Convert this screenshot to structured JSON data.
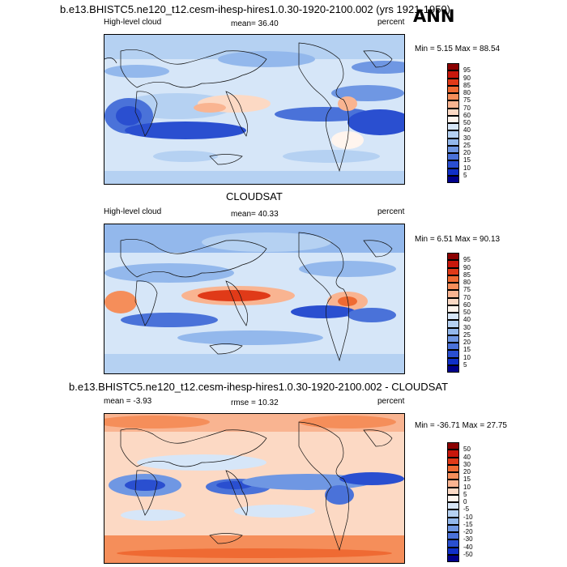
{
  "header": {
    "title": "b.e13.BHISTC5.ne120_t12.cesm-ihesp-hires1.0.30-1920-2100.002 (yrs 1921-1950)",
    "season": "ANN"
  },
  "panels": [
    {
      "id": "model",
      "title": "",
      "left_label": "High-level cloud",
      "center_label": "mean=  36.40",
      "right_label": "percent",
      "minmax": "Min =   5.15 Max =  88.54",
      "scale": "abs"
    },
    {
      "id": "obs",
      "title": "CLOUDSAT",
      "left_label": "High-level cloud",
      "center_label": "mean=  40.33",
      "right_label": "percent",
      "minmax": "Min =   6.51 Max =  90.13",
      "scale": "abs"
    },
    {
      "id": "diff",
      "title": "b.e13.BHISTC5.ne120_t12.cesm-ihesp-hires1.0.30-1920-2100.002 - CLOUDSAT",
      "left_label": "mean = -3.93",
      "center_label": "rmse =  10.32",
      "right_label": "percent",
      "minmax": "Min = -36.71 Max =  27.75",
      "scale": "diff"
    }
  ],
  "colorbars": {
    "abs": {
      "labels": [
        "95",
        "90",
        "85",
        "80",
        "75",
        "70",
        "60",
        "50",
        "40",
        "30",
        "25",
        "20",
        "15",
        "10",
        "5"
      ],
      "colors": [
        "#8b0000",
        "#c8170c",
        "#e03a18",
        "#ef6a33",
        "#f58e5a",
        "#f9b491",
        "#fcd9c4",
        "#fff5ee",
        "#d6e6f8",
        "#b5d1f2",
        "#93b8ec",
        "#6f97e3",
        "#4a72d9",
        "#2a4fd0",
        "#1030c8",
        "#00008b"
      ]
    },
    "diff": {
      "labels": [
        "50",
        "40",
        "30",
        "20",
        "15",
        "10",
        "5",
        "0",
        "-5",
        "-10",
        "-15",
        "-20",
        "-30",
        "-40",
        "-50"
      ],
      "colors": [
        "#8b0000",
        "#c8170c",
        "#e03a18",
        "#ef6a33",
        "#f58e5a",
        "#f9b491",
        "#fcd9c4",
        "#fff5ee",
        "#d6e6f8",
        "#b5d1f2",
        "#93b8ec",
        "#6f97e3",
        "#4a72d9",
        "#2a4fd0",
        "#1030c8",
        "#00008b"
      ]
    }
  }
}
